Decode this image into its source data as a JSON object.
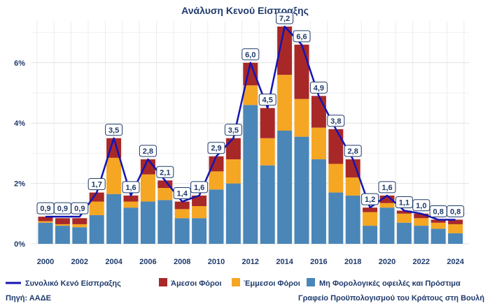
{
  "chart_data": {
    "type": "bar",
    "title": "Ανάλυση Κενού Είσπραξης",
    "x": [
      2000,
      2001,
      2002,
      2003,
      2004,
      2005,
      2006,
      2007,
      2008,
      2009,
      2010,
      2011,
      2012,
      2013,
      2014,
      2015,
      2016,
      2017,
      2018,
      2019,
      2020,
      2021,
      2022,
      2023,
      2024
    ],
    "x_tick_labels": [
      "2000",
      "2002",
      "2004",
      "2006",
      "2008",
      "2010",
      "2012",
      "2014",
      "2016",
      "2018",
      "2020",
      "2022",
      "2024"
    ],
    "y_tick_labels": [
      "0%",
      "2%",
      "4%",
      "6%"
    ],
    "ylim": [
      0,
      7.5
    ],
    "stacked": true,
    "grid": true,
    "series": [
      {
        "name": "Μη Φορολογικές οφειλές και Πρόστιμα",
        "type": "bar",
        "color": "#4a86b8",
        "values": [
          0.7,
          0.6,
          0.55,
          0.95,
          1.65,
          1.2,
          1.4,
          1.45,
          0.85,
          0.85,
          1.8,
          2.0,
          4.6,
          2.6,
          3.75,
          3.55,
          2.8,
          1.7,
          1.6,
          0.6,
          1.2,
          0.7,
          0.6,
          0.5,
          0.35
        ]
      },
      {
        "name": "Έμμεσοι Φόροι",
        "type": "bar",
        "color": "#f5a623",
        "values": [
          0.05,
          0.05,
          0.1,
          0.45,
          1.2,
          0.2,
          0.9,
          0.4,
          0.3,
          0.4,
          0.6,
          0.8,
          0.65,
          0.9,
          1.85,
          1.25,
          1.05,
          0.95,
          0.6,
          0.45,
          0.15,
          0.3,
          0.25,
          0.2,
          0.3
        ]
      },
      {
        "name": "Άμεσοι Φόροι",
        "type": "bar",
        "color": "#a82828",
        "values": [
          0.15,
          0.2,
          0.2,
          0.3,
          0.65,
          0.2,
          0.5,
          0.25,
          0.25,
          0.35,
          0.5,
          0.7,
          0.75,
          1.0,
          1.6,
          1.8,
          1.05,
          1.15,
          0.6,
          0.15,
          0.25,
          0.1,
          0.15,
          0.1,
          0.15
        ]
      },
      {
        "name": "Συνολικό Κενό Είσπραξης",
        "type": "line",
        "color": "#1414b4",
        "values": [
          0.9,
          0.9,
          0.9,
          1.7,
          3.5,
          1.6,
          2.8,
          2.1,
          1.4,
          1.6,
          2.9,
          3.5,
          6.0,
          4.5,
          7.2,
          6.6,
          4.9,
          3.8,
          2.8,
          1.2,
          1.6,
          1.1,
          1.0,
          0.8,
          0.8
        ],
        "labels": [
          "0,9",
          "0,9",
          "0,9",
          "1,7",
          "3,5",
          "1,6",
          "2,8",
          "2,1",
          "1,4",
          "1,6",
          "2,9",
          "3,5",
          "6,0",
          "4,5",
          "7,2",
          "6,6",
          "4,9",
          "3,8",
          "2,8",
          "1,2",
          "1,6",
          "1,1",
          "1,0",
          "0,8",
          "0,8"
        ]
      }
    ],
    "legend": {
      "placement": "bottom",
      "items": [
        {
          "label": "Συνολικό Κενό Είσπραξης",
          "kind": "line",
          "color": "#1414b4"
        },
        {
          "label": "Άμεσοι Φόροι",
          "kind": "box",
          "color": "#a82828"
        },
        {
          "label": "Έμμεσοι Φόροι",
          "kind": "box",
          "color": "#f5a623"
        },
        {
          "label": "Μη Φορολογικές οφειλές και Πρόστιμα",
          "kind": "box",
          "color": "#4a86b8"
        }
      ]
    }
  },
  "footer": {
    "source": "Πηγή: ΑΑΔΕ",
    "credit": "Γραφείο Προϋπολογισμού του Κράτους στη Βουλή"
  }
}
